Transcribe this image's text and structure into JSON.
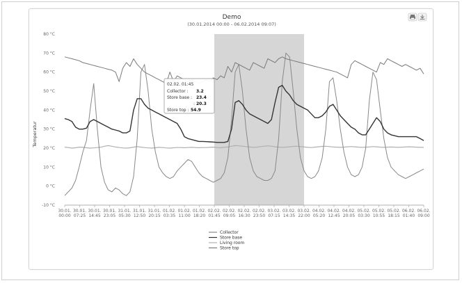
{
  "chart_data": {
    "type": "line",
    "title": "Demo",
    "subtitle": "(30.01.2014 00:00 - 06.02.2014 09:07)",
    "ylabel": "Temperatur",
    "ylim": [
      -10,
      80
    ],
    "yticks": [
      {
        "value": -10,
        "label": "-10 °C"
      },
      {
        "value": 0,
        "label": "0 °C"
      },
      {
        "value": 10,
        "label": "10 °C"
      },
      {
        "value": 20,
        "label": "20 °C"
      },
      {
        "value": 30,
        "label": "30 °C"
      },
      {
        "value": 40,
        "label": "40 °C"
      },
      {
        "value": 50,
        "label": "50 °C"
      },
      {
        "value": 60,
        "label": "60 °C"
      },
      {
        "value": 70,
        "label": "70 °C"
      },
      {
        "value": 80,
        "label": "80 °C"
      }
    ],
    "xticks": [
      {
        "date": "30.01.",
        "time": "00:00"
      },
      {
        "date": "30.01.",
        "time": "07:25"
      },
      {
        "date": "30.01.",
        "time": "14:45"
      },
      {
        "date": "30.01.",
        "time": "23:05"
      },
      {
        "date": "31.01.",
        "time": "05:30"
      },
      {
        "date": "31.01.",
        "time": "12:50"
      },
      {
        "date": "31.01.",
        "time": "20:15"
      },
      {
        "date": "01.02.",
        "time": "03:35"
      },
      {
        "date": "01.02.",
        "time": "11:00"
      },
      {
        "date": "01.02.",
        "time": "18:20"
      },
      {
        "date": "02.02.",
        "time": "01:45"
      },
      {
        "date": "02.02.",
        "time": "09:05"
      },
      {
        "date": "02.02.",
        "time": "16:30"
      },
      {
        "date": "02.02.",
        "time": "23:50"
      },
      {
        "date": "03.02.",
        "time": "07:15"
      },
      {
        "date": "03.02.",
        "time": "14:35"
      },
      {
        "date": "03.02.",
        "time": "22:00"
      },
      {
        "date": "04.02.",
        "time": "05:20"
      },
      {
        "date": "04.02.",
        "time": "12:45"
      },
      {
        "date": "04.02.",
        "time": "20:05"
      },
      {
        "date": "05.02.",
        "time": "03:30"
      },
      {
        "date": "05.02.",
        "time": "10:55"
      },
      {
        "date": "05.02.",
        "time": "18:15"
      },
      {
        "date": "06.02.",
        "time": "01:40"
      },
      {
        "date": "06.02.",
        "time": "09:00"
      }
    ],
    "highlight_band": {
      "from_tick": 10,
      "to_tick": 16
    },
    "legend_position": "bottom-center",
    "grid": false,
    "series": [
      {
        "name": "Collector",
        "color": "#888888",
        "values": [
          -5,
          -3,
          -1,
          3,
          10,
          18,
          24,
          40,
          54,
          30,
          10,
          2,
          -2,
          -3,
          -1,
          -2,
          -4,
          -5,
          -3,
          5,
          25,
          60,
          64,
          50,
          30,
          18,
          10,
          7,
          5,
          4,
          5,
          8,
          10,
          12,
          14,
          13,
          10,
          7,
          5,
          4,
          3,
          2,
          3,
          4,
          7,
          15,
          35,
          60,
          64,
          50,
          30,
          15,
          8,
          5,
          4,
          3,
          3,
          4,
          8,
          25,
          55,
          70,
          68,
          50,
          30,
          15,
          8,
          5,
          4,
          5,
          8,
          15,
          30,
          55,
          57,
          45,
          30,
          18,
          10,
          6,
          5,
          6,
          10,
          20,
          45,
          60,
          56,
          40,
          25,
          15,
          10,
          8,
          6,
          5,
          4,
          5,
          6,
          7,
          8,
          9
        ]
      },
      {
        "name": "Store base",
        "color": "#333333",
        "values": [
          35.5,
          35,
          34,
          31,
          30,
          30,
          30.5,
          34,
          35,
          34,
          33,
          32,
          31,
          30,
          29.5,
          29,
          28,
          28,
          29,
          40,
          46,
          46,
          43,
          41,
          40,
          39,
          38,
          37,
          36,
          35,
          34,
          33,
          30,
          26,
          25,
          24.5,
          24,
          23.5,
          23.5,
          23.4,
          23.3,
          23.2,
          23,
          23,
          23,
          23.5,
          30,
          44,
          45,
          43,
          40,
          38,
          37,
          36,
          35,
          34,
          33,
          35,
          44,
          52,
          53,
          50,
          48,
          45,
          43,
          42,
          41,
          40,
          38,
          36,
          36,
          37,
          39,
          42,
          43,
          40,
          37,
          35,
          33,
          31,
          30,
          28,
          27,
          27,
          30,
          33,
          36,
          34,
          30,
          28,
          27,
          26.5,
          26,
          26,
          26,
          26,
          26,
          26,
          25,
          24
        ]
      },
      {
        "name": "Living room",
        "color": "#b0b0b0",
        "values": [
          20.5,
          20.3,
          20,
          20.2,
          20.5,
          20.4,
          20.2,
          20,
          20.1,
          20.3,
          20.5,
          21,
          21.3,
          21,
          20.6,
          20.3,
          20.1,
          20,
          20.2,
          20.5,
          20.8,
          20.5,
          20.3,
          20.1,
          20,
          20.2,
          20.4,
          20.3,
          20.1,
          20,
          20.2,
          20.3,
          20.3,
          20.2,
          20.3,
          20.4,
          20.3,
          20.2,
          20.3,
          20.3,
          20.4,
          20.5,
          20.3,
          20.2,
          20.4,
          20.6,
          21,
          21.3,
          21.2,
          21,
          20.8,
          20.6,
          20.4,
          20.5,
          20.8,
          21,
          21.2,
          21,
          20.7,
          20.5,
          20.4,
          20.5,
          20.7,
          20.9,
          21,
          20.8,
          20.6,
          20.4,
          20.3,
          20.5,
          20.7,
          20.9,
          21,
          20.8,
          20.6,
          20.5,
          20.4,
          20.5,
          20.7,
          20.8,
          20.7,
          20.5,
          20.4,
          20.5,
          20.6,
          20.8,
          20.7,
          20.5,
          20.4,
          20.5,
          20.6,
          20.5,
          20.4,
          20.5,
          20.6,
          20.7,
          20.6,
          20.5,
          20.4,
          20.4
        ]
      },
      {
        "name": "Store top",
        "color": "#7a7a7a",
        "values": [
          68,
          67.5,
          67,
          66.5,
          66,
          65,
          64.5,
          64,
          63.5,
          63,
          62.5,
          62,
          61.5,
          61,
          60,
          55,
          62,
          65,
          63,
          67,
          64,
          62,
          60,
          59,
          58,
          57,
          56,
          55,
          54,
          60,
          55,
          58,
          57,
          56,
          55,
          56,
          55,
          54,
          55,
          56,
          55,
          57,
          56,
          58,
          57,
          63,
          60,
          65,
          64,
          63,
          62,
          61,
          65,
          64,
          63,
          62,
          67,
          66,
          65,
          67,
          68,
          67,
          66.5,
          66,
          65.5,
          65,
          64.5,
          64,
          63.5,
          63,
          62.5,
          62,
          61.5,
          61,
          60.5,
          60,
          59,
          58,
          57,
          64,
          66,
          65,
          64,
          63,
          62,
          61,
          60,
          65,
          64,
          67,
          66,
          65,
          64,
          63,
          64,
          63,
          62,
          61,
          62,
          59
        ]
      }
    ]
  },
  "tooltip": {
    "header": "02.02. 01:45",
    "rows": [
      {
        "label": "Collector :",
        "value": "3.2"
      },
      {
        "label": "Store base :",
        "value": "23.4"
      },
      {
        "label": ":",
        "value": "20.3"
      },
      {
        "label": "Store top :",
        "value": "54.9"
      }
    ]
  },
  "toolbar": {
    "print_icon": "printer-icon",
    "export_icon": "download-icon"
  }
}
